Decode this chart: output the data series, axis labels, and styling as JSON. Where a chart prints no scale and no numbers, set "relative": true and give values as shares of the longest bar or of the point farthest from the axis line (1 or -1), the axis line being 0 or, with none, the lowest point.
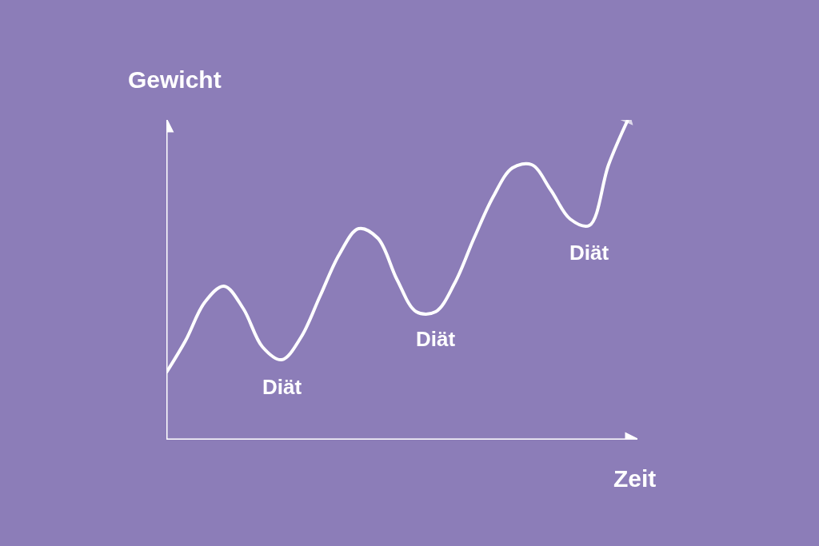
{
  "chart_data": {
    "type": "line",
    "relative": true,
    "xlabel": "Zeit",
    "ylabel": "Gewicht",
    "categories": [
      null,
      null,
      null,
      null,
      null,
      null,
      null,
      null,
      null,
      null,
      null,
      null,
      null,
      null,
      null,
      null,
      null,
      null,
      null,
      null,
      null,
      null,
      null,
      null,
      null
    ],
    "series": [
      {
        "color": "#ffffff",
        "values": [
          0.21,
          0.31,
          0.43,
          0.48,
          0.41,
          0.29,
          0.25,
          0.32,
          0.45,
          0.58,
          0.66,
          0.63,
          0.5,
          0.4,
          0.4,
          0.49,
          0.63,
          0.76,
          0.85,
          0.86,
          0.78,
          0.69,
          0.67,
          0.86,
          1.0
        ]
      }
    ],
    "annotations": [
      "Diät",
      "Diät",
      "Diät"
    ],
    "marker": "none",
    "line_style": "solid"
  }
}
